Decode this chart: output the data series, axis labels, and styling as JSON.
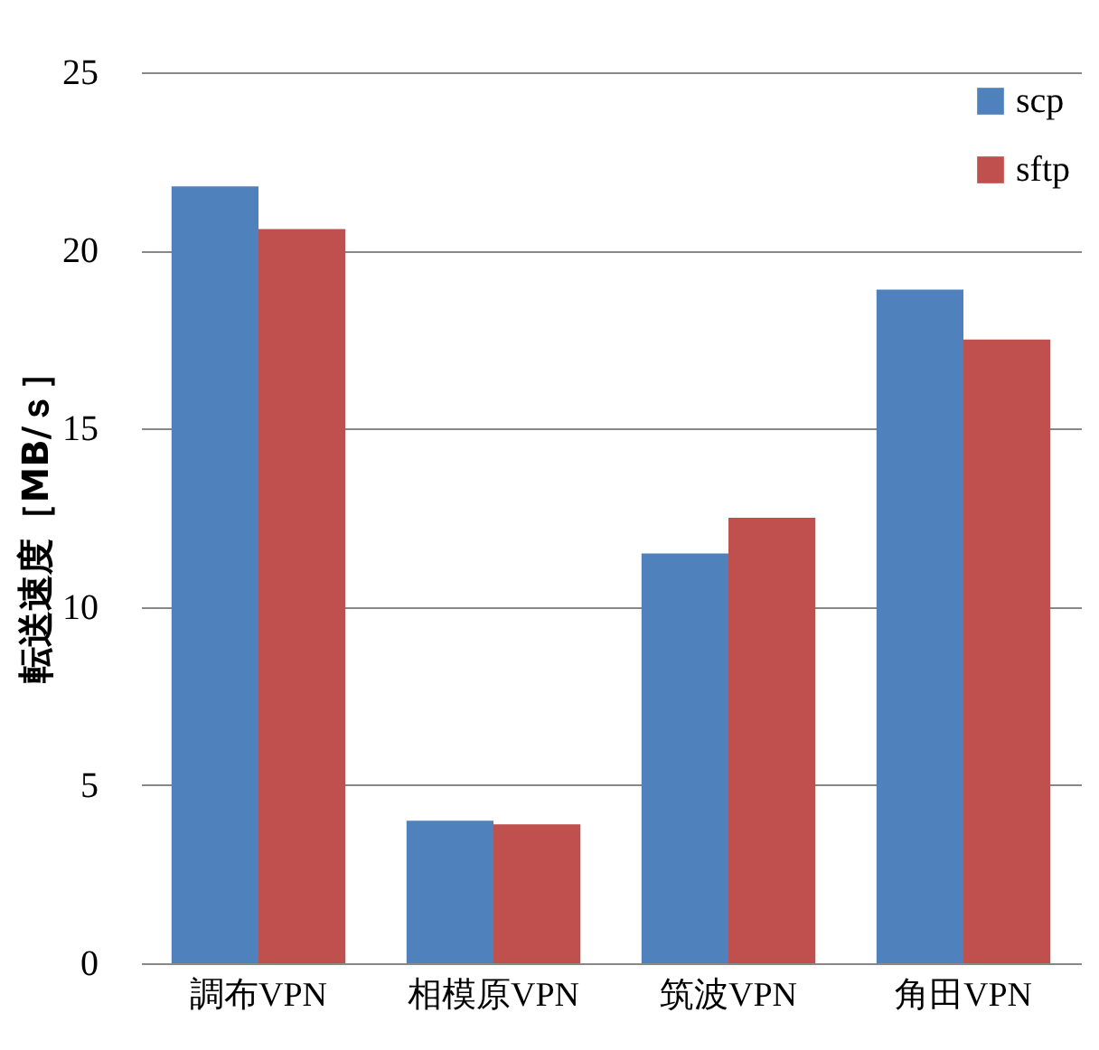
{
  "chart_data": {
    "type": "bar",
    "ylabel": "転送速度［MB/ｓ］",
    "categories": [
      "調布VPN",
      "相模原VPN",
      "筑波VPN",
      "角田VPN"
    ],
    "series": [
      {
        "name": "scp",
        "color": "#4f81bd",
        "values": [
          21.8,
          4.0,
          11.5,
          18.9
        ]
      },
      {
        "name": "sftp",
        "color": "#c0504d",
        "values": [
          20.6,
          3.9,
          12.5,
          17.5
        ]
      }
    ],
    "ylim": [
      0,
      25
    ],
    "yticks": [
      0,
      5,
      10,
      15,
      20,
      25
    ],
    "grid": "y",
    "legend": "top right"
  }
}
